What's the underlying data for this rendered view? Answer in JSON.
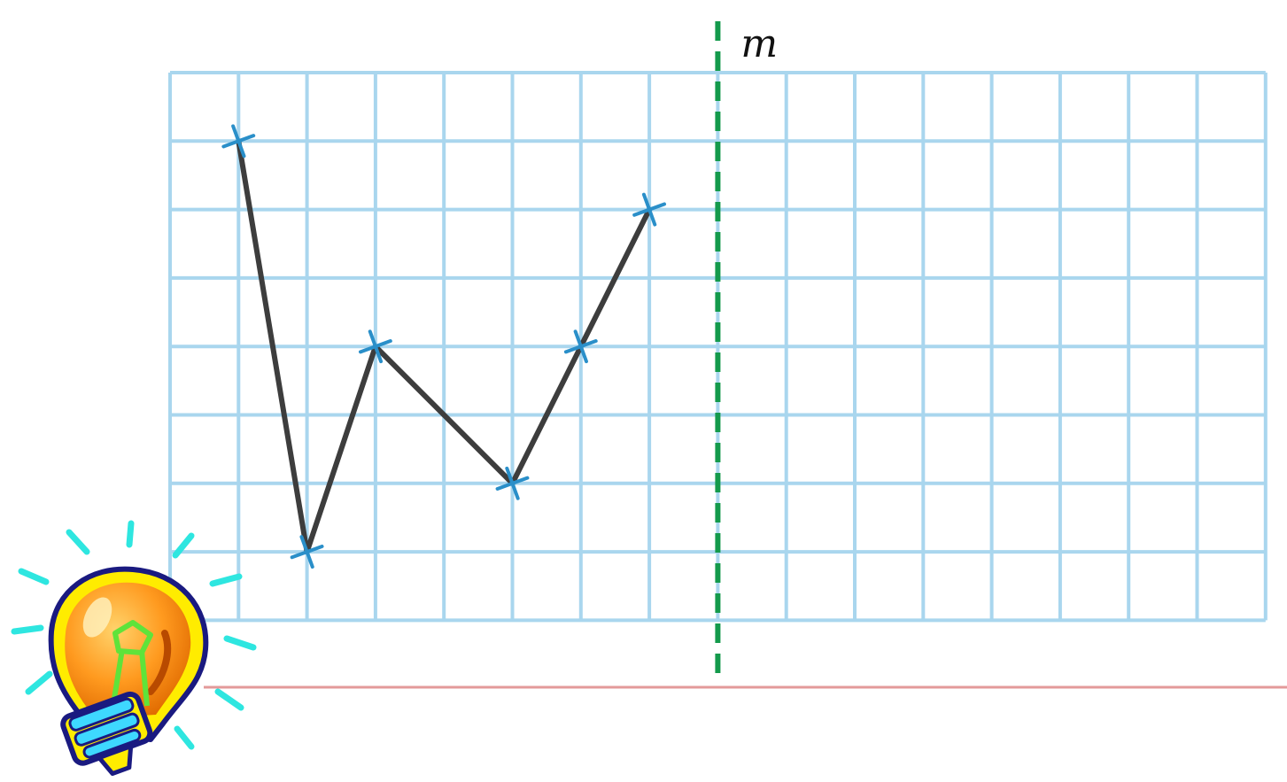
{
  "diagram": {
    "line_label": "m",
    "grid": {
      "columns": 16,
      "rows": 8,
      "mirror_line_column": 8
    },
    "polyline_points": [
      {
        "col": 1,
        "row": 1
      },
      {
        "col": 2,
        "row": 7
      },
      {
        "col": 3,
        "row": 4
      },
      {
        "col": 5,
        "row": 6
      },
      {
        "col": 6,
        "row": 4
      },
      {
        "col": 7,
        "row": 2
      }
    ],
    "colors": {
      "grid": "#a9d6ee",
      "polyline": "#3d3d3d",
      "cross_mark": "#2a8fc9",
      "mirror_line": "#149a4c",
      "footer_rule": "#e39a9a"
    },
    "decoration_icon": "lightbulb-icon"
  }
}
